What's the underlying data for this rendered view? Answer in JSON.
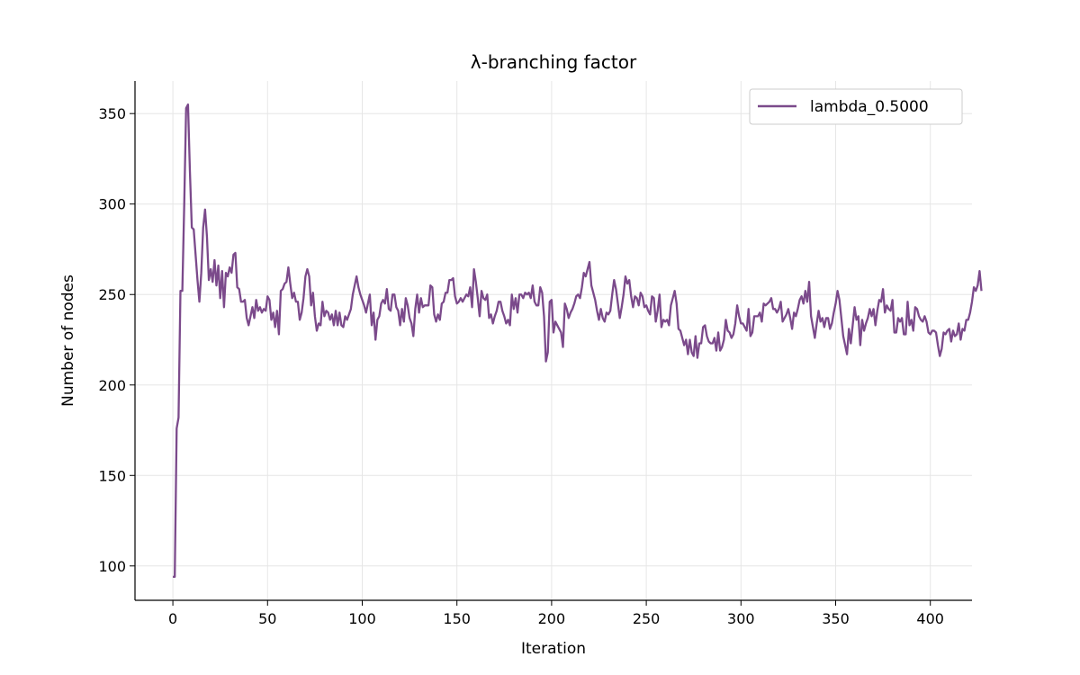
{
  "chart_data": {
    "type": "line",
    "title": "λ-branching factor",
    "xlabel": "Iteration",
    "ylabel": "Number of nodes",
    "xlim": [
      -20,
      422
    ],
    "ylim": [
      81,
      368
    ],
    "xticks": [
      0,
      50,
      100,
      150,
      200,
      250,
      300,
      350,
      400
    ],
    "yticks": [
      100,
      150,
      200,
      250,
      300,
      350
    ],
    "grid": true,
    "legend_position": "top-right",
    "series": [
      {
        "name": "lambda_0.5000",
        "color": "#7b4a8b",
        "x_start": 0,
        "x_step": 1,
        "values": [
          94,
          94,
          176,
          182,
          252,
          252,
          300,
          353,
          355,
          318,
          287,
          286,
          272,
          258,
          246,
          262,
          287,
          297,
          282,
          258,
          264,
          257,
          269,
          255,
          266,
          248,
          263,
          243,
          262,
          260,
          265,
          262,
          272,
          273,
          254,
          253,
          246,
          246,
          247,
          237,
          233,
          238,
          243,
          237,
          247,
          241,
          243,
          240,
          242,
          241,
          249,
          247,
          236,
          240,
          232,
          241,
          228,
          252,
          253,
          256,
          257,
          265,
          256,
          248,
          251,
          246,
          246,
          236,
          240,
          248,
          260,
          264,
          260,
          244,
          251,
          238,
          230,
          234,
          233,
          246,
          238,
          241,
          240,
          236,
          239,
          233,
          241,
          233,
          240,
          233,
          232,
          238,
          236,
          239,
          242,
          250,
          255,
          260,
          254,
          250,
          247,
          244,
          240,
          245,
          250,
          233,
          240,
          225,
          236,
          238,
          245,
          247,
          245,
          253,
          242,
          241,
          250,
          250,
          243,
          241,
          233,
          242,
          235,
          248,
          244,
          237,
          234,
          227,
          242,
          250,
          240,
          248,
          243,
          244,
          244,
          244,
          255,
          254,
          239,
          235,
          239,
          236,
          245,
          246,
          251,
          251,
          258,
          258,
          259,
          249,
          245,
          246,
          248,
          246,
          248,
          250,
          249,
          254,
          243,
          264,
          257,
          248,
          238,
          252,
          248,
          247,
          250,
          237,
          239,
          234,
          238,
          241,
          246,
          246,
          241,
          238,
          234,
          236,
          233,
          250,
          242,
          248,
          240,
          250,
          250,
          248,
          251,
          250,
          251,
          248,
          255,
          246,
          244,
          244,
          254,
          251,
          238,
          213,
          218,
          246,
          247,
          229,
          235,
          233,
          231,
          229,
          221,
          245,
          242,
          237,
          240,
          242,
          245,
          249,
          250,
          248,
          254,
          262,
          260,
          264,
          268,
          255,
          251,
          247,
          241,
          236,
          242,
          237,
          235,
          240,
          239,
          241,
          250,
          258,
          253,
          245,
          237,
          243,
          250,
          260,
          256,
          258,
          249,
          243,
          249,
          248,
          244,
          251,
          249,
          243,
          244,
          241,
          239,
          249,
          248,
          235,
          241,
          250,
          232,
          236,
          235,
          236,
          233,
          244,
          248,
          252,
          245,
          231,
          230,
          226,
          222,
          225,
          217,
          225,
          218,
          216,
          227,
          215,
          223,
          223,
          232,
          233,
          227,
          224,
          223,
          223,
          226,
          219,
          229,
          219,
          221,
          225,
          236,
          230,
          229,
          226,
          228,
          234,
          244,
          238,
          234,
          234,
          232,
          230,
          242,
          227,
          229,
          238,
          238,
          238,
          240,
          235,
          245,
          244,
          245,
          246,
          248,
          242,
          242,
          240,
          242,
          246,
          235,
          237,
          239,
          242,
          237,
          231,
          240,
          238,
          242,
          247,
          249,
          245,
          252,
          246,
          257,
          238,
          232,
          226,
          234,
          241,
          235,
          237,
          232,
          237,
          237,
          231,
          234,
          240,
          245,
          252,
          247,
          237,
          227,
          222,
          217,
          231,
          223,
          233,
          243,
          236,
          238,
          222,
          236,
          230,
          234,
          237,
          242,
          238,
          242,
          233,
          241,
          247,
          246,
          253,
          240,
          244,
          242,
          241,
          247,
          229,
          229,
          237,
          235,
          237,
          228,
          228,
          246,
          233,
          236,
          230,
          243,
          242,
          238,
          236,
          235,
          238,
          235,
          229,
          228,
          230,
          230,
          229,
          222,
          216,
          220,
          229,
          228,
          230,
          231,
          224,
          230,
          227,
          228,
          234,
          225,
          231,
          230,
          236,
          236,
          240,
          246,
          254,
          252,
          255,
          263,
          252
        ]
      }
    ]
  }
}
